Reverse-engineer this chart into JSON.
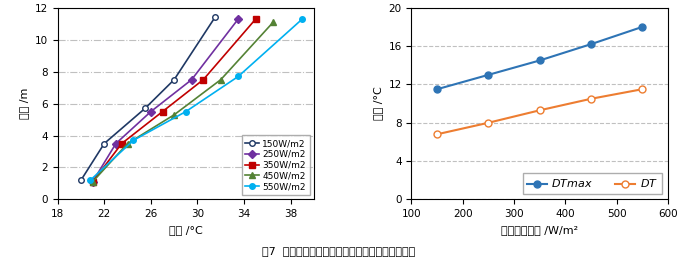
{
  "left_chart": {
    "xlabel": "温度 /°C",
    "ylabel": "高度 /m",
    "xlim": [
      18,
      40
    ],
    "ylim": [
      0,
      12
    ],
    "xticks": [
      18,
      22,
      26,
      30,
      34,
      38
    ],
    "yticks": [
      0,
      2,
      4,
      6,
      8,
      10,
      12
    ],
    "series": [
      {
        "label": "150W/m2",
        "color": "#1f3864",
        "marker": "o",
        "markerfacecolor": "white",
        "temp": [
          20.0,
          22.0,
          25.5,
          28.0,
          31.5
        ],
        "height": [
          1.2,
          3.5,
          5.7,
          7.5,
          11.4
        ]
      },
      {
        "label": "250W/m2",
        "color": "#7030a0",
        "marker": "D",
        "markerfacecolor": "#7030a0",
        "temp": [
          21.0,
          23.0,
          26.0,
          29.5,
          33.5
        ],
        "height": [
          1.1,
          3.5,
          5.5,
          7.5,
          11.3
        ]
      },
      {
        "label": "350W/m2",
        "color": "#c00000",
        "marker": "s",
        "markerfacecolor": "#c00000",
        "temp": [
          21.0,
          23.5,
          27.0,
          30.5,
          35.0
        ],
        "height": [
          1.1,
          3.5,
          5.5,
          7.5,
          11.3
        ]
      },
      {
        "label": "450W/m2",
        "color": "#548235",
        "marker": "^",
        "markerfacecolor": "#548235",
        "temp": [
          21.0,
          24.0,
          28.0,
          32.0,
          36.5
        ],
        "height": [
          1.1,
          3.5,
          5.3,
          7.5,
          11.1
        ]
      },
      {
        "label": "550W/m2",
        "color": "#00b0f0",
        "marker": "o",
        "markerfacecolor": "#00b0f0",
        "temp": [
          20.8,
          24.5,
          29.0,
          33.5,
          39.0
        ],
        "height": [
          1.2,
          3.7,
          5.5,
          7.7,
          11.3
        ]
      }
    ]
  },
  "right_chart": {
    "xlabel": "太阳辐射强度 /W/m²",
    "ylabel": "温差 /°C",
    "xlim": [
      100,
      600
    ],
    "ylim": [
      0,
      20
    ],
    "xticks": [
      100,
      200,
      300,
      400,
      500,
      600
    ],
    "yticks": [
      0,
      4,
      8,
      12,
      16,
      20
    ],
    "series": [
      {
        "label": "DTmax",
        "label_display": "$\\it{DTmax}$",
        "color": "#2e74b5",
        "marker": "o",
        "markerfacecolor": "#2e74b5",
        "x": [
          150,
          250,
          350,
          450,
          550
        ],
        "y": [
          11.5,
          13.0,
          14.5,
          16.2,
          18.0
        ]
      },
      {
        "label": "DT",
        "label_display": "$\\it{DT}$",
        "color": "#ed7d31",
        "marker": "o",
        "markerfacecolor": "white",
        "x": [
          150,
          250,
          350,
          450,
          550
        ],
        "y": [
          6.8,
          8.0,
          9.3,
          10.5,
          11.5
        ]
      }
    ]
  },
  "caption": "图7  室内垂直温度随室外太阳辐射强度的变化特性",
  "grid_color": "#c0c0c0",
  "left_grid_style": "-.",
  "right_grid_style": "--"
}
